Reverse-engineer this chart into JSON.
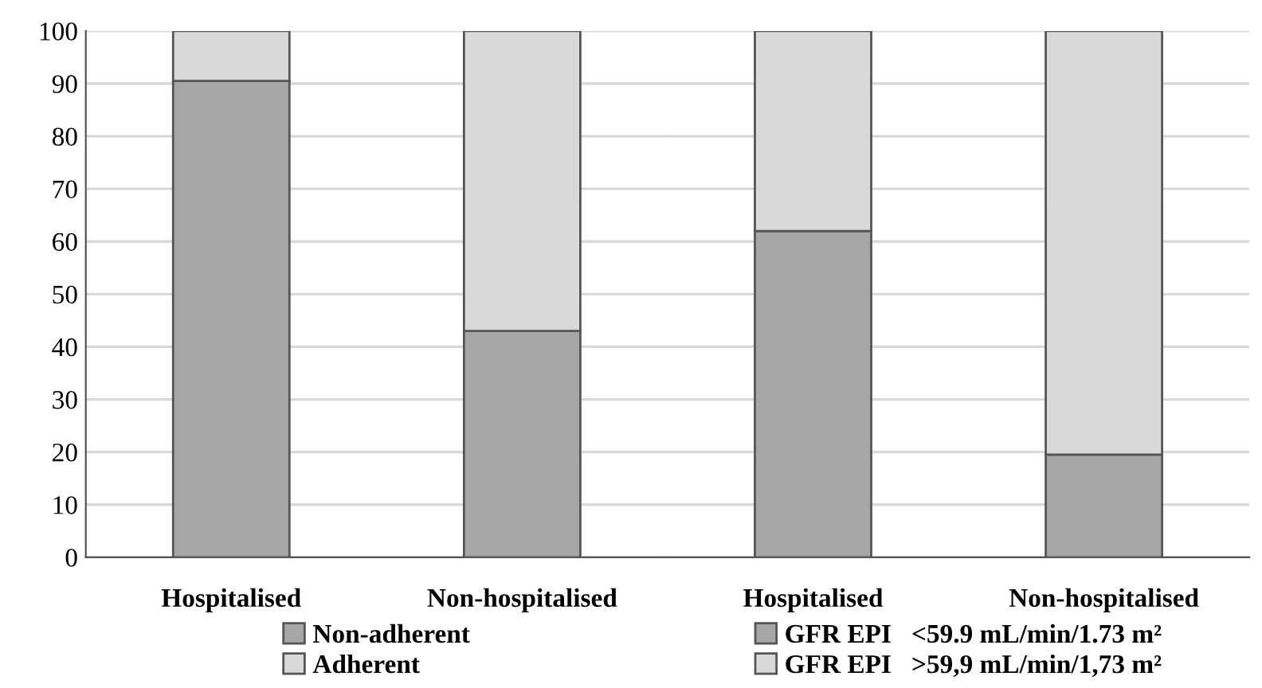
{
  "chart_data": [
    {
      "type": "bar",
      "stacked": true,
      "categories": [
        "Hospitalised",
        "Non-hospitalised"
      ],
      "ylim": [
        0,
        100
      ],
      "yticks": [
        0,
        10,
        20,
        30,
        40,
        50,
        60,
        70,
        80,
        90,
        100
      ],
      "grid": "y",
      "legend": "bottom",
      "series": [
        {
          "name": "Non-adherent",
          "color": "#a6a6a6",
          "values": [
            90.5,
            43
          ]
        },
        {
          "name": "Adherent",
          "color": "#d9d9d9",
          "values": [
            9.5,
            57
          ]
        }
      ]
    },
    {
      "type": "bar",
      "stacked": true,
      "categories": [
        "Hospitalised",
        "Non-hospitalised"
      ],
      "ylim": [
        0,
        100
      ],
      "yticks": [
        0,
        10,
        20,
        30,
        40,
        50,
        60,
        70,
        80,
        90,
        100
      ],
      "grid": "y",
      "legend": "bottom",
      "tick_labels": "x",
      "series": [
        {
          "name": "GFR EPI   <59.9 mL/min/1.73 m²",
          "color": "#a6a6a6",
          "values": [
            62,
            19.5
          ]
        },
        {
          "name": "GFR EPI   >59,9 mL/min/1,73 m²",
          "color": "#d9d9d9",
          "values": [
            38,
            80.5
          ]
        }
      ]
    }
  ]
}
